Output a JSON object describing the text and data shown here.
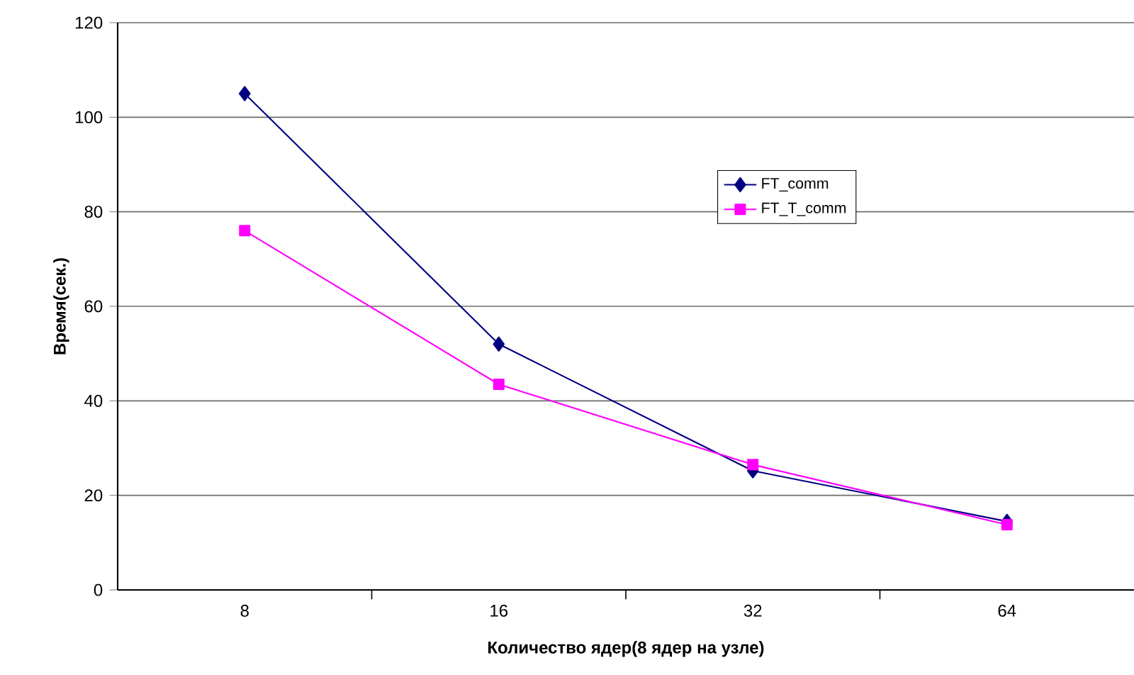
{
  "chart_data": {
    "type": "line",
    "xlabel": "Количество ядер(8 ядер на узле)",
    "ylabel": "Время(сек.)",
    "categories": [
      "8",
      "16",
      "32",
      "64"
    ],
    "series": [
      {
        "name": "FT_comm",
        "color": "#000080",
        "marker": "diamond",
        "values": [
          105,
          52,
          25.2,
          14.5
        ]
      },
      {
        "name": "FT_T_comm",
        "color": "#ff00ff",
        "marker": "square",
        "values": [
          76,
          43.5,
          26.5,
          13.8
        ]
      }
    ],
    "ylim": [
      0,
      120
    ],
    "yticks": [
      0,
      20,
      40,
      60,
      80,
      100,
      120
    ],
    "grid": "y",
    "legend": "top right",
    "line_style": "solid"
  }
}
